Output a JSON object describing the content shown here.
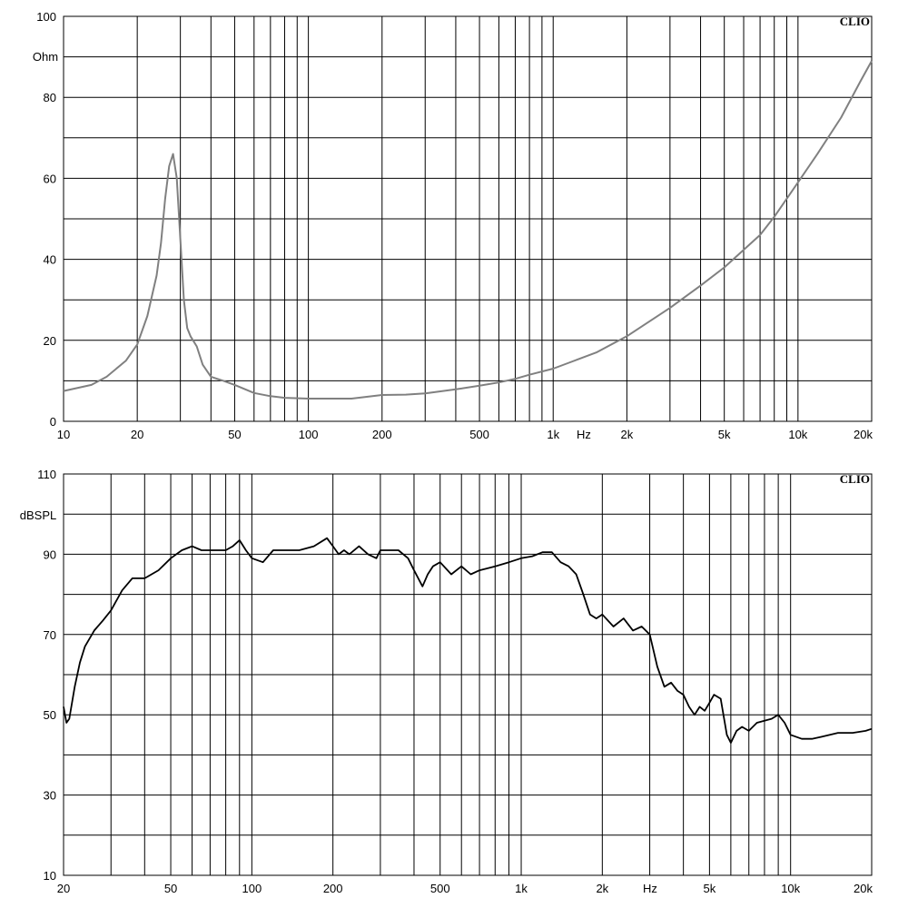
{
  "chart_data": [
    {
      "type": "line",
      "title": "",
      "brand": "CLIO",
      "ylabel": "Ohm",
      "xunit": "Hz",
      "x_scale": "log",
      "xlim": [
        10,
        20000
      ],
      "ylim": [
        0,
        100
      ],
      "grid": true,
      "color": "#808080",
      "ytick_labels": [
        "100",
        "80",
        "60",
        "40",
        "20",
        "0"
      ],
      "xtick_labels": [
        "10",
        "20",
        "50",
        "100",
        "200",
        "500",
        "1k",
        "2k",
        "5k",
        "10k",
        "20k"
      ],
      "series": [
        {
          "x": [
            10,
            13,
            15,
            18,
            20,
            22,
            24,
            25,
            26,
            27,
            28,
            29,
            30,
            31,
            32,
            33,
            35,
            37,
            40,
            45,
            50,
            60,
            70,
            80,
            100,
            150,
            200,
            250,
            300,
            400,
            500,
            600,
            700,
            800,
            1000,
            1200,
            1500,
            2000,
            3000,
            4000,
            5000,
            7000,
            8000,
            10000,
            12000,
            15000,
            18000,
            20000
          ],
          "y": [
            7.5,
            9,
            11,
            15,
            19,
            26,
            36,
            44,
            55,
            63,
            66,
            60,
            45,
            30,
            23,
            21,
            18.5,
            14,
            11,
            10,
            9,
            7,
            6.2,
            5.8,
            5.6,
            5.6,
            6.5,
            6.6,
            6.9,
            7.9,
            8.8,
            9.6,
            10.5,
            11.5,
            13,
            14.8,
            17,
            21,
            28,
            33.5,
            38,
            46,
            50.5,
            59,
            66,
            75,
            84,
            89
          ]
        }
      ]
    },
    {
      "type": "line",
      "title": "",
      "brand": "CLIO",
      "ylabel": "dBSPL",
      "xunit": "Hz",
      "x_scale": "log",
      "xlim": [
        20,
        20000
      ],
      "ylim": [
        10,
        110
      ],
      "grid": true,
      "color": "#000000",
      "ytick_labels": [
        "110",
        "90",
        "70",
        "50",
        "30",
        "10"
      ],
      "xtick_labels": [
        "20",
        "50",
        "100",
        "200",
        "500",
        "1k",
        "2k",
        "5k",
        "10k",
        "20k"
      ],
      "series": [
        {
          "x": [
            20,
            20.5,
            21,
            22,
            23,
            24,
            26,
            28,
            30,
            33,
            36,
            40,
            45,
            50,
            55,
            60,
            65,
            70,
            80,
            85,
            90,
            95,
            100,
            110,
            120,
            130,
            150,
            170,
            190,
            200,
            210,
            220,
            230,
            250,
            270,
            290,
            300,
            320,
            350,
            380,
            400,
            430,
            450,
            470,
            500,
            550,
            600,
            650,
            700,
            750,
            800,
            900,
            1000,
            1100,
            1200,
            1300,
            1400,
            1500,
            1600,
            1700,
            1800,
            1900,
            2000,
            2200,
            2400,
            2600,
            2800,
            3000,
            3200,
            3400,
            3600,
            3800,
            4000,
            4200,
            4400,
            4600,
            4800,
            5000,
            5200,
            5500,
            5800,
            6000,
            6300,
            6600,
            7000,
            7500,
            8000,
            8500,
            9000,
            9500,
            10000,
            11000,
            12000,
            13000,
            14000,
            15000,
            17000,
            19000,
            20000
          ],
          "y": [
            52,
            48,
            49,
            57,
            63,
            67,
            71,
            73.5,
            76,
            81,
            84,
            84,
            86,
            89,
            91,
            92,
            91,
            91,
            91,
            92,
            93.5,
            91,
            89,
            88,
            91,
            91,
            91,
            92,
            94,
            92,
            90,
            91,
            90,
            92,
            90,
            89,
            91,
            91,
            91,
            89,
            86,
            82,
            85,
            87,
            88,
            85,
            87,
            85,
            86,
            86.5,
            87,
            88,
            89,
            89.5,
            90.5,
            90.5,
            88,
            87,
            85,
            80,
            75,
            74,
            75,
            72,
            74,
            71,
            72,
            70,
            62,
            57,
            58,
            56,
            55,
            52,
            50,
            52,
            51,
            53,
            55,
            54,
            45,
            43,
            46,
            47,
            46,
            48,
            48.5,
            49,
            50,
            48,
            45,
            44,
            44,
            44.5,
            45,
            45.5,
            45.5,
            46,
            46.5
          ]
        }
      ]
    }
  ]
}
